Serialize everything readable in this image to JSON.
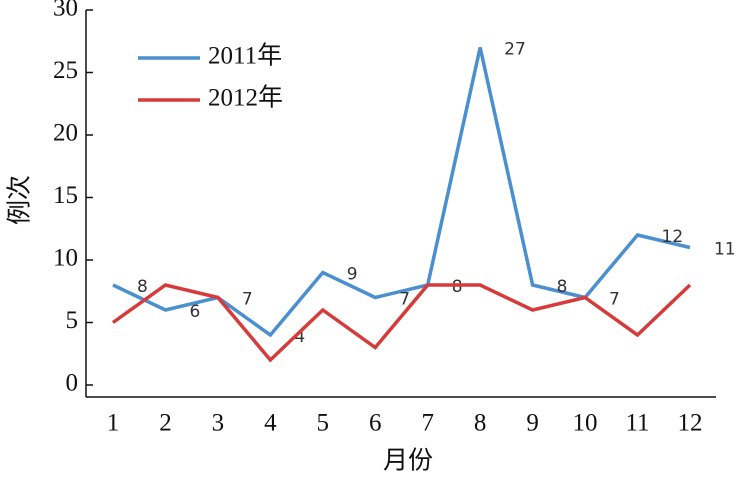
{
  "chart_data": {
    "type": "line",
    "x_label": "月份",
    "y_label": "例次",
    "categories": [
      "1",
      "2",
      "3",
      "4",
      "5",
      "6",
      "7",
      "8",
      "9",
      "10",
      "11",
      "12"
    ],
    "series": [
      {
        "name": "2011年",
        "color": "#4a8fd0",
        "values": [
          8,
          6,
          7,
          4,
          9,
          7,
          8,
          27,
          8,
          7,
          12,
          11
        ]
      },
      {
        "name": "2012年",
        "color": "#d63a3a",
        "values": [
          5,
          8,
          7,
          2,
          6,
          3,
          8,
          8,
          6,
          7,
          4,
          8
        ]
      }
    ],
    "ylim": [
      0,
      30
    ],
    "yticks": [
      0,
      5,
      10,
      15,
      20,
      25,
      30
    ],
    "legend": "upper left"
  }
}
